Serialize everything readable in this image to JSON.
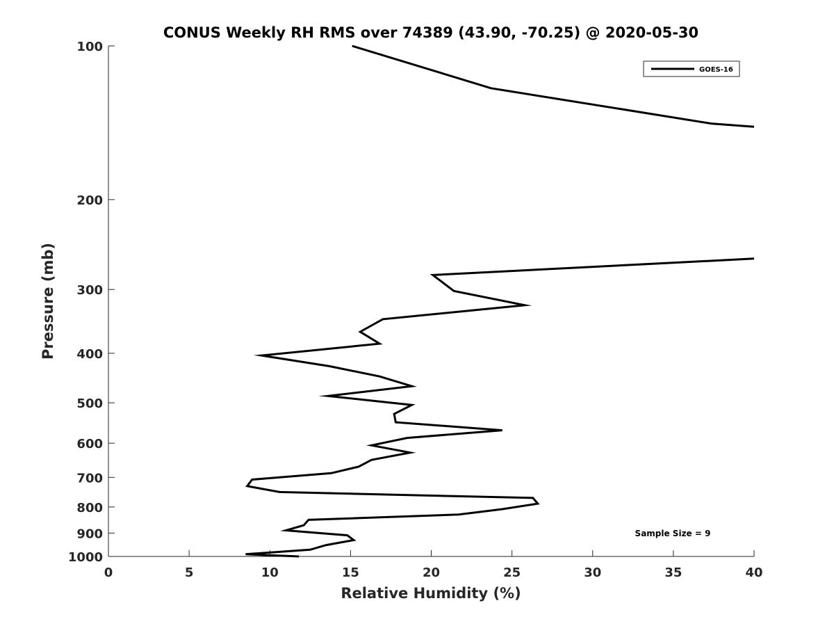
{
  "chart_data": {
    "type": "line",
    "title": "CONUS Weekly RH RMS over 74389 (43.90, -70.25) @ 2020-05-30",
    "xlabel": "Relative Humidity (%)",
    "ylabel": "Pressure (mb)",
    "xlim": [
      0,
      40
    ],
    "ylim": [
      100,
      1000
    ],
    "y_scale": "log",
    "y_reversed": true,
    "grid": false,
    "legend_position": "top-right",
    "x_ticks": [
      "0",
      "5",
      "10",
      "15",
      "20",
      "25",
      "30",
      "35",
      "40"
    ],
    "y_ticks": [
      "100",
      "200",
      "300",
      "400",
      "500",
      "600",
      "700",
      "800",
      "900",
      "1000"
    ],
    "annotation": "Sample Size = 9",
    "series": [
      {
        "name": "GOES-16",
        "color": "#000000",
        "segments": [
          [
            {
              "x": 15.1,
              "y": 100
            },
            {
              "x": 23.7,
              "y": 121
            },
            {
              "x": 37.4,
              "y": 142
            },
            {
              "x": 40.0,
              "y": 144
            }
          ],
          [
            {
              "x": 40.0,
              "y": 261
            },
            {
              "x": 20.1,
              "y": 281
            },
            {
              "x": 21.4,
              "y": 302
            },
            {
              "x": 25.8,
              "y": 322
            },
            {
              "x": 17.0,
              "y": 343
            },
            {
              "x": 15.6,
              "y": 363
            },
            {
              "x": 16.8,
              "y": 383
            },
            {
              "x": 9.5,
              "y": 404
            },
            {
              "x": 13.7,
              "y": 424
            },
            {
              "x": 16.8,
              "y": 444
            },
            {
              "x": 18.8,
              "y": 464
            },
            {
              "x": 13.6,
              "y": 485
            },
            {
              "x": 18.8,
              "y": 505
            },
            {
              "x": 17.7,
              "y": 526
            },
            {
              "x": 17.8,
              "y": 546
            },
            {
              "x": 24.4,
              "y": 566
            },
            {
              "x": 18.5,
              "y": 586
            },
            {
              "x": 16.3,
              "y": 606
            },
            {
              "x": 18.7,
              "y": 626
            },
            {
              "x": 16.3,
              "y": 647
            },
            {
              "x": 15.5,
              "y": 667
            },
            {
              "x": 13.8,
              "y": 687
            },
            {
              "x": 8.9,
              "y": 707
            },
            {
              "x": 8.6,
              "y": 728
            },
            {
              "x": 10.6,
              "y": 748
            },
            {
              "x": 26.3,
              "y": 768
            },
            {
              "x": 26.6,
              "y": 788
            },
            {
              "x": 24.4,
              "y": 808
            },
            {
              "x": 21.7,
              "y": 828
            },
            {
              "x": 12.4,
              "y": 848
            },
            {
              "x": 12.1,
              "y": 869
            },
            {
              "x": 11.0,
              "y": 889
            },
            {
              "x": 14.8,
              "y": 909
            },
            {
              "x": 15.2,
              "y": 929
            },
            {
              "x": 13.5,
              "y": 950
            },
            {
              "x": 12.5,
              "y": 970
            },
            {
              "x": 8.5,
              "y": 990
            },
            {
              "x": 11.8,
              "y": 1000
            }
          ]
        ]
      }
    ]
  }
}
